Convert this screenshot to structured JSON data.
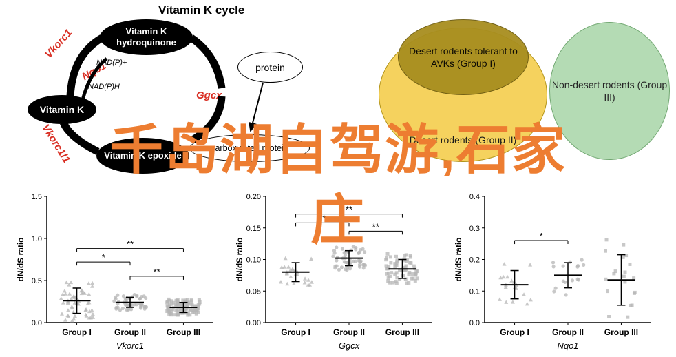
{
  "cycle": {
    "title": "Vitamin K cycle",
    "nodes": {
      "hydroquinone": "Vitamin K\nhydroquinone",
      "vitaminK": "Vitamin K",
      "epoxide": "Vitamin K\nepoxide",
      "protein": "protein",
      "carboxylated": "carboxylated protein"
    },
    "redLabels": {
      "vkorc1": "Vkorc1",
      "nqo1": "Nqo1",
      "ggcx": "Ggcx",
      "vkorc1l1": "Vkorc1l1"
    },
    "smallLabels": {
      "nadp_plus": "NAD(P)+",
      "nadp_h": "NAD(P)H"
    }
  },
  "venn": {
    "group1": {
      "label": "Desert rodents\ntolerant to\nAVKs (Group I)",
      "fill": "#a88e1f",
      "opacity": 0.95
    },
    "group2": {
      "label": "Desert rodents\n(Group II)",
      "fill": "#f4ce4d",
      "opacity": 0.9
    },
    "group3": {
      "label": "Non-desert\nrodents\n(Group III)",
      "fill": "#a8d5a8",
      "opacity": 0.85
    }
  },
  "charts": {
    "vkorc1": {
      "gene": "Vkorc1",
      "ylabel": "dN/dS ratio",
      "ymax": 1.5,
      "ytick": 0.5,
      "xlabels": [
        "Group I",
        "Group II",
        "Group III"
      ],
      "means": [
        0.26,
        0.24,
        0.18
      ],
      "sd": [
        0.15,
        0.06,
        0.06
      ],
      "brackets": [
        {
          "g1": 0,
          "g2": 1,
          "y": 0.72,
          "label": "*"
        },
        {
          "g1": 1,
          "g2": 2,
          "y": 0.55,
          "label": "**"
        },
        {
          "g1": 0,
          "g2": 2,
          "y": 0.88,
          "label": "**"
        }
      ],
      "n": [
        55,
        50,
        100
      ]
    },
    "ggcx": {
      "gene": "Ggcx",
      "ylabel": "dN/dS ratio",
      "ymax": 0.2,
      "ytick": 0.05,
      "xlabels": [
        "Group I",
        "Group II",
        "Group III"
      ],
      "means": [
        0.08,
        0.102,
        0.085
      ],
      "sd": [
        0.015,
        0.012,
        0.015
      ],
      "brackets": [
        {
          "g1": 0,
          "g2": 1,
          "y": 0.158,
          "label": "**"
        },
        {
          "g1": 1,
          "g2": 2,
          "y": 0.145,
          "label": "**"
        },
        {
          "g1": 0,
          "g2": 2,
          "y": 0.172,
          "label": "**"
        }
      ],
      "n": [
        25,
        50,
        65
      ]
    },
    "nqo1": {
      "gene": "Nqo1",
      "ylabel": "dN/dS ratio",
      "ymax": 0.4,
      "ytick": 0.1,
      "xlabels": [
        "Group I",
        "Group II",
        "Group III"
      ],
      "means": [
        0.12,
        0.15,
        0.135
      ],
      "sd": [
        0.045,
        0.04,
        0.08
      ],
      "brackets": [
        {
          "g1": 0,
          "g2": 1,
          "y": 0.26,
          "label": "*"
        }
      ],
      "n": [
        18,
        16,
        20
      ]
    },
    "colors": {
      "marker": "#b5b5b5",
      "axis": "#000",
      "bracket": "#000"
    }
  },
  "overlay": {
    "line1": "千岛湖自驾游,石家",
    "line2": "庄"
  }
}
